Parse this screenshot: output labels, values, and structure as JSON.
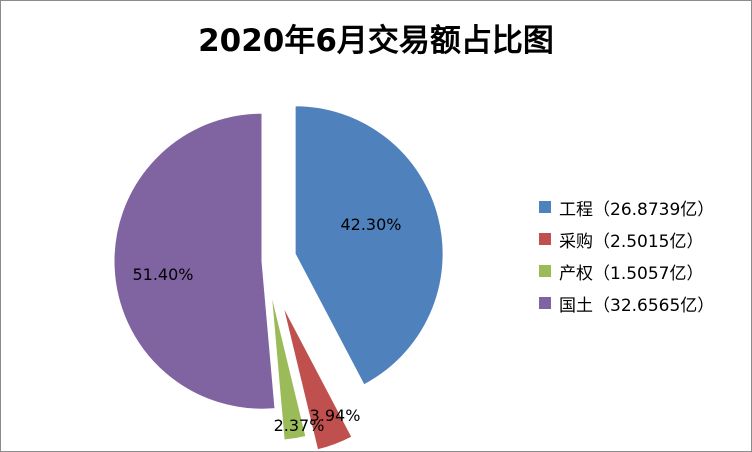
{
  "chart_data": {
    "type": "pie",
    "title": "2020年6月交易额占比图",
    "categories": [
      "工程",
      "采购",
      "产权",
      "国土"
    ],
    "values": [
      26.8739,
      2.5015,
      1.5057,
      32.6565
    ],
    "percent_labels": [
      "42.30%",
      "3.94%",
      "2.37%",
      "51.40%"
    ],
    "legend_labels": [
      "工程（26.8739亿）",
      "采购（2.5015亿）",
      "产权（1.5057亿）",
      "国土（32.6565亿）"
    ],
    "colors": [
      "#4f81bd",
      "#c0504d",
      "#9bbb59",
      "#8064a2"
    ],
    "exploded": true,
    "legend_position": "right"
  }
}
